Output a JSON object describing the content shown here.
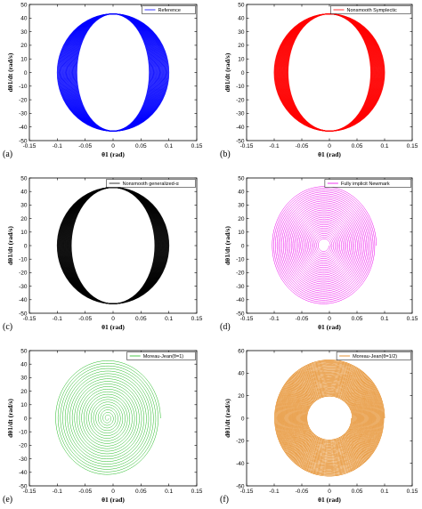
{
  "chart_data": [
    {
      "type": "line",
      "panel_label": "(a)",
      "legend": "Reference",
      "color": "#0000ff",
      "pattern": "band",
      "xlabel": "θ1 (rad)",
      "ylabel": "dθ1/dt (rad/s)",
      "xlim": [
        -0.15,
        0.15
      ],
      "ylim": [
        -50,
        50
      ],
      "xticks": [
        "-0.15",
        "-0.1",
        "-0.05",
        "0",
        "0.05",
        "0.1",
        "0.15"
      ],
      "yticks": [
        "-50",
        "-40",
        "-30",
        "-20",
        "-10",
        "0",
        "10",
        "20",
        "30",
        "40",
        "50"
      ],
      "curve": {
        "rx_outer": 0.1,
        "rx_inner": 0.065,
        "ry": 43
      }
    },
    {
      "type": "line",
      "panel_label": "(b)",
      "legend": "Nonsmooth Symplectic",
      "color": "#ff0000",
      "pattern": "band",
      "xlabel": "θ1 (rad)",
      "ylabel": "dθ1/dt (rad/s)",
      "xlim": [
        -0.15,
        0.15
      ],
      "ylim": [
        -50,
        50
      ],
      "xticks": [
        "-0.15",
        "-0.1",
        "-0.05",
        "0",
        "0.05",
        "0.1",
        "0.15"
      ],
      "yticks": [
        "-50",
        "-40",
        "-30",
        "-20",
        "-10",
        "0",
        "10",
        "20",
        "30",
        "40",
        "50"
      ],
      "curve": {
        "rx_outer": 0.1,
        "rx_inner": 0.075,
        "ry": 43
      }
    },
    {
      "type": "line",
      "panel_label": "(c)",
      "legend": "Nonsmooth generalized-α",
      "color": "#000000",
      "pattern": "band",
      "xlabel": "θ1 (rad)",
      "ylabel": "dθ1/dt (rad/s)",
      "xlim": [
        -0.15,
        0.15
      ],
      "ylim": [
        -50,
        50
      ],
      "xticks": [
        "-0.15",
        "-0.1",
        "-0.05",
        "0",
        "0.05",
        "0.1",
        "0.15"
      ],
      "yticks": [
        "-50",
        "-40",
        "-30",
        "-20",
        "-10",
        "0",
        "10",
        "20",
        "30",
        "40",
        "50"
      ],
      "curve": {
        "rx_outer": 0.1,
        "rx_inner": 0.075,
        "ry": 43
      }
    },
    {
      "type": "line",
      "panel_label": "(d)",
      "legend": "Fully implicit Newmark",
      "color": "#ee00ee",
      "pattern": "spiral",
      "xlabel": "θ1 (rad)",
      "ylabel": "dθ1/dt (rad/s)",
      "xlim": [
        -0.15,
        0.15
      ],
      "ylim": [
        -50,
        50
      ],
      "xticks": [
        "-0.15",
        "-0.1",
        "-0.05",
        "0",
        "0.05",
        "0.1",
        "0.15"
      ],
      "yticks": [
        "-50",
        "-40",
        "-30",
        "-20",
        "-10",
        "0",
        "10",
        "20",
        "30",
        "40",
        "50"
      ],
      "curve": {
        "cx": -0.01,
        "rx_outer": 0.095,
        "rx_inner": 0.009,
        "ry_outer": 44,
        "ry_inner": 4,
        "turns": 30
      }
    },
    {
      "type": "line",
      "panel_label": "(e)",
      "legend": "Moreau-Jean(θ=1)",
      "color": "#22bb22",
      "pattern": "spiral",
      "xlabel": "θ1 (rad)",
      "ylabel": "dθ1/dt (rad/s)",
      "xlim": [
        -0.15,
        0.15
      ],
      "ylim": [
        -50,
        50
      ],
      "xticks": [
        "-0.15",
        "-0.1",
        "-0.05",
        "0",
        "0.05",
        "0.1",
        "0.15"
      ],
      "yticks": [
        "-50",
        "-40",
        "-30",
        "-20",
        "-10",
        "0",
        "10",
        "20",
        "30",
        "40",
        "50"
      ],
      "curve": {
        "cx": -0.01,
        "rx_outer": 0.095,
        "rx_inner": 0.002,
        "ry_outer": 43,
        "ry_inner": 1,
        "turns": 22
      }
    },
    {
      "type": "line",
      "panel_label": "(f)",
      "legend": "Moreau-Jean(θ=1/2)",
      "color": "#e07800",
      "pattern": "ring",
      "xlabel": "θ1 (rad)",
      "ylabel": "dθ1/dt (rad/s)",
      "xlim": [
        -0.15,
        0.15
      ],
      "ylim": [
        -60,
        60
      ],
      "xticks": [
        "-0.15",
        "-0.1",
        "-0.05",
        "0",
        "0.05",
        "0.1",
        "0.15"
      ],
      "yticks": [
        "-60",
        "-40",
        "-20",
        "0",
        "20",
        "40",
        "60"
      ],
      "curve": {
        "cx": 0.0,
        "rx_outer": 0.1,
        "rx_inner": 0.04,
        "ry_outer": 52,
        "ry_inner": 19,
        "turns": 40
      }
    }
  ]
}
